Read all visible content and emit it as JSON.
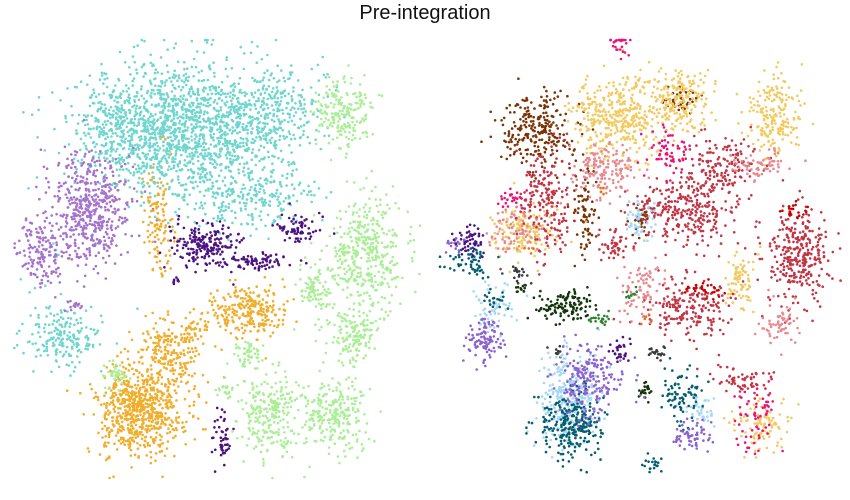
{
  "chart_data": {
    "type": "scatter",
    "title": "Pre-integration",
    "xlabel": "",
    "ylabel": "",
    "grid": false,
    "axes": false,
    "legend": "none",
    "panels": [
      {
        "name": "left",
        "colored_by": "cluster",
        "clusters": [
          {
            "color": "#6fd6cf",
            "blobs": [
              [
                178,
                130,
                88,
                62,
                1500
              ],
              [
                270,
                110,
                50,
                42,
                300
              ],
              [
                115,
                130,
                30,
                38,
                150
              ],
              [
                250,
                195,
                60,
                30,
                250
              ],
              [
                62,
                335,
                34,
                30,
                200
              ],
              [
                52,
                250,
                8,
                6,
                5
              ]
            ]
          },
          {
            "color": "#a673cc",
            "blobs": [
              [
                92,
                210,
                38,
                52,
                500
              ],
              [
                40,
                250,
                22,
                30,
                150
              ],
              [
                75,
                305,
                8,
                6,
                15
              ]
            ]
          },
          {
            "color": "#f0ae2d",
            "blobs": [
              [
                140,
                410,
                40,
                42,
                700
              ],
              [
                170,
                350,
                28,
                30,
                200
              ],
              [
                250,
                310,
                32,
                25,
                250
              ],
              [
                158,
                225,
                13,
                60,
                120
              ],
              [
                195,
                330,
                15,
                15,
                40
              ]
            ]
          },
          {
            "color": "#4d1281",
            "blobs": [
              [
                205,
                245,
                32,
                20,
                200
              ],
              [
                255,
                262,
                32,
                8,
                80
              ],
              [
                298,
                228,
                22,
                15,
                70
              ],
              [
                222,
                440,
                10,
                25,
                50
              ],
              [
                175,
                280,
                6,
                5,
                8
              ]
            ]
          },
          {
            "color": "#aaee96",
            "blobs": [
              [
                343,
                113,
                25,
                30,
                200
              ],
              [
                365,
                255,
                35,
                55,
                400
              ],
              [
                315,
                288,
                15,
                18,
                80
              ],
              [
                350,
                335,
                25,
                25,
                150
              ],
              [
                335,
                415,
                30,
                35,
                250
              ],
              [
                268,
                415,
                28,
                40,
                250
              ],
              [
                248,
                355,
                12,
                14,
                50
              ],
              [
                225,
                390,
                8,
                10,
                20
              ],
              [
                118,
                375,
                12,
                10,
                40
              ]
            ]
          }
        ]
      },
      {
        "name": "right",
        "colored_by": "sample",
        "clusters": [
          {
            "color": "#7a3305",
            "blobs": [
              [
                538,
                130,
                35,
                35,
                250
              ],
              [
                585,
                215,
                12,
                40,
                80
              ],
              [
                680,
                100,
                15,
                10,
                40
              ],
              [
                640,
                220,
                8,
                12,
                30
              ]
            ]
          },
          {
            "color": "#f2ca60",
            "blobs": [
              [
                618,
                118,
                40,
                40,
                400
              ],
              [
                680,
                100,
                30,
                30,
                200
              ],
              [
                775,
                115,
                28,
                38,
                200
              ],
              [
                525,
                230,
                30,
                25,
                150
              ],
              [
                740,
                280,
                15,
                25,
                80
              ],
              [
                760,
                425,
                25,
                20,
                100
              ]
            ]
          },
          {
            "color": "#c13545",
            "blobs": [
              [
                545,
                200,
                25,
                55,
                200
              ],
              [
                685,
                210,
                50,
                35,
                300
              ],
              [
                690,
                310,
                40,
                30,
                200
              ],
              [
                800,
                255,
                28,
                45,
                300
              ],
              [
                745,
                380,
                25,
                15,
                60
              ],
              [
                720,
                165,
                35,
                25,
                150
              ],
              [
                615,
                245,
                15,
                15,
                50
              ]
            ]
          },
          {
            "color": "#e88890",
            "blobs": [
              [
                605,
                170,
                30,
                25,
                150
              ],
              [
                515,
                230,
                25,
                20,
                80
              ],
              [
                640,
                290,
                20,
                25,
                80
              ],
              [
                780,
                325,
                18,
                20,
                60
              ],
              [
                760,
                165,
                25,
                15,
                60
              ]
            ]
          },
          {
            "color": "#ee1175",
            "blobs": [
              [
                672,
                150,
                22,
                20,
                60
              ],
              [
                510,
                200,
                15,
                10,
                25
              ],
              [
                755,
                420,
                20,
                30,
                60
              ],
              [
                620,
                40,
                10,
                20,
                30
              ]
            ]
          },
          {
            "color": "#c90000",
            "blobs": [
              [
                705,
                290,
                15,
                10,
                30
              ],
              [
                795,
                212,
                12,
                8,
                25
              ]
            ]
          },
          {
            "color": "#10360a",
            "blobs": [
              [
                565,
                305,
                28,
                15,
                120
              ],
              [
                645,
                392,
                8,
                8,
                20
              ],
              [
                520,
                290,
                8,
                6,
                10
              ]
            ]
          },
          {
            "color": "#3a3a3a",
            "blobs": [
              [
                520,
                275,
                10,
                10,
                20
              ],
              [
                655,
                352,
                10,
                6,
                20
              ],
              [
                555,
                352,
                8,
                6,
                10
              ]
            ]
          },
          {
            "color": "#27832b",
            "blobs": [
              [
                600,
                320,
                12,
                8,
                20
              ],
              [
                632,
                293,
                6,
                5,
                10
              ]
            ]
          },
          {
            "color": "#a4d8f6",
            "blobs": [
              [
                570,
                400,
                28,
                40,
                300
              ],
              [
                495,
                310,
                20,
                20,
                60
              ],
              [
                640,
                220,
                12,
                25,
                50
              ],
              [
                700,
                410,
                15,
                15,
                40
              ]
            ]
          },
          {
            "color": "#045e72",
            "blobs": [
              [
                570,
                425,
                28,
                28,
                250
              ],
              [
                470,
                262,
                22,
                15,
                60
              ],
              [
                495,
                300,
                10,
                10,
                20
              ],
              [
                680,
                395,
                20,
                25,
                80
              ],
              [
                652,
                465,
                10,
                8,
                20
              ]
            ]
          },
          {
            "color": "#8c62cf",
            "blobs": [
              [
                590,
                380,
                32,
                35,
                200
              ],
              [
                485,
                340,
                18,
                20,
                100
              ],
              [
                690,
                435,
                18,
                12,
                60
              ],
              [
                455,
                245,
                10,
                8,
                20
              ]
            ]
          },
          {
            "color": "#4d1281",
            "blobs": [
              [
                470,
                240,
                15,
                15,
                50
              ],
              [
                620,
                350,
                10,
                10,
                30
              ]
            ]
          },
          {
            "color": "#f06d10",
            "blobs": [
              [
                600,
                190,
                5,
                5,
                6
              ],
              [
                645,
                320,
                5,
                6,
                5
              ],
              [
                530,
                250,
                5,
                4,
                4
              ]
            ]
          }
        ]
      }
    ]
  }
}
